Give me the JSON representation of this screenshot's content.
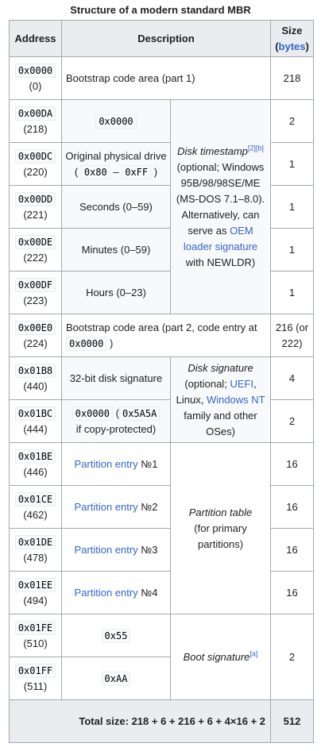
{
  "caption": "Structure of a modern standard MBR",
  "headers": {
    "address": "Address",
    "description": "Description",
    "size": "Size",
    "size_unit_link": "bytes",
    "paren_open": "(",
    "paren_close": ")"
  },
  "rows": [
    {
      "addr": "0x0000",
      "dec": "(0)",
      "desc": "Bootstrap code area (part 1)",
      "size": "218"
    },
    {
      "addr": "0x00DA",
      "dec": "(218)",
      "code": "0x0000",
      "size": "2"
    },
    {
      "addr": "0x00DC",
      "dec": "(220)",
      "desc": "Original physical drive",
      "range_start": "0x80",
      "range_end": "0xFF",
      "size": "1"
    },
    {
      "addr": "0x00DD",
      "dec": "(221)",
      "desc": "Seconds (0–59)",
      "size": "1"
    },
    {
      "addr": "0x00DE",
      "dec": "(222)",
      "desc": "Minutes (0–59)",
      "size": "1"
    },
    {
      "addr": "0x00DF",
      "dec": "(223)",
      "desc": "Hours (0–23)",
      "size": "1"
    },
    {
      "addr": "0x00E0",
      "dec": "(224)",
      "desc": "Bootstrap code area (part 2, code entry at",
      "code": "0x0000",
      "close": ")",
      "size": "216 (or 222)"
    },
    {
      "addr": "0x01B8",
      "dec": "(440)",
      "desc": "32-bit disk signature",
      "size": "4"
    },
    {
      "addr": "0x01BC",
      "dec": "(444)",
      "code": "0x0000",
      "code2": "0x5A5A",
      "desc2": "if copy-protected)",
      "size": "2"
    },
    {
      "addr": "0x01BE",
      "dec": "(446)",
      "link": "Partition entry",
      "num": "№1",
      "size": "16"
    },
    {
      "addr": "0x01CE",
      "dec": "(462)",
      "link": "Partition entry",
      "num": "№2",
      "size": "16"
    },
    {
      "addr": "0x01DE",
      "dec": "(478)",
      "link": "Partition entry",
      "num": "№3",
      "size": "16"
    },
    {
      "addr": "0x01EE",
      "dec": "(494)",
      "link": "Partition entry",
      "num": "№4",
      "size": "16"
    },
    {
      "addr": "0x01FE",
      "dec": "(510)",
      "code": "0x55",
      "size": "2"
    },
    {
      "addr": "0x01FF",
      "dec": "(511)",
      "code": "0xAA"
    }
  ],
  "groups": {
    "timestamp": {
      "title": "Disk timestamp",
      "sup": "[2][b]",
      "l1": "(optional; Windows 95B/98/98SE/ME (MS-DOS 7.1–8.0). Alternatively, can serve as",
      "link": "OEM loader signature",
      "l2": "with NEWLDR)"
    },
    "signature": {
      "title": "Disk signature",
      "l1": "(optional;",
      "link1": "UEFI",
      "sep": ",",
      "l2": "Linux,",
      "link2": "Windows NT",
      "l3": "family and other OSes)"
    },
    "partition": {
      "title": "Partition table",
      "l1": "(for primary partitions)"
    },
    "boot": {
      "title": "Boot signature",
      "sup": "[a]"
    }
  },
  "footer": {
    "label": "Total size: 218 + 6 + 216 + 6 + 4×16 + 2",
    "value": "512"
  },
  "ui": {
    "range_open": "(",
    "range_dash": "–",
    "range_close": ")"
  }
}
